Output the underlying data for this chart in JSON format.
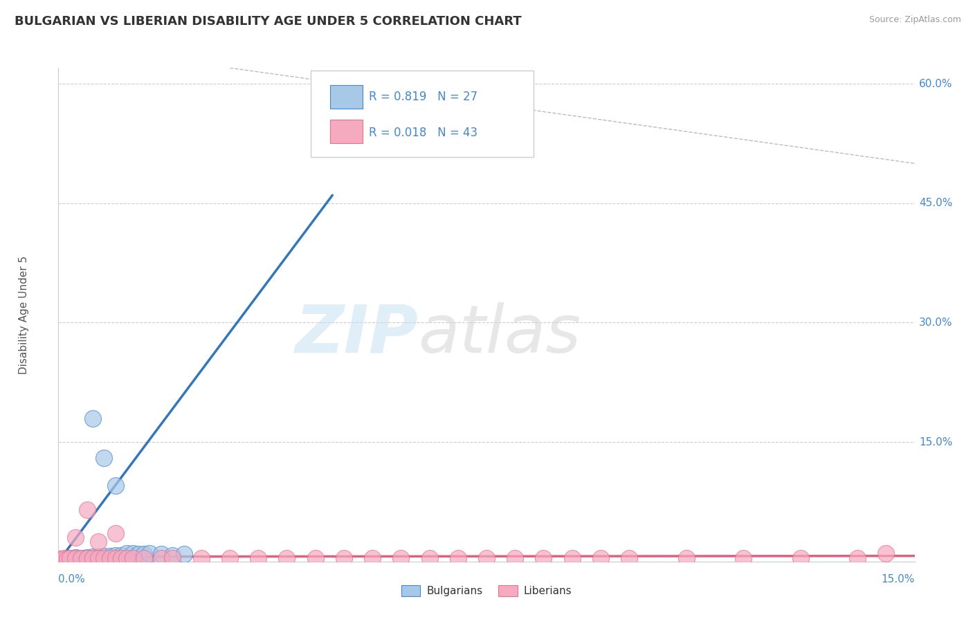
{
  "title": "BULGARIAN VS LIBERIAN DISABILITY AGE UNDER 5 CORRELATION CHART",
  "source": "Source: ZipAtlas.com",
  "ylabel": "Disability Age Under 5",
  "xlim": [
    -0.002,
    0.152
  ],
  "ylim": [
    -0.01,
    0.65
  ],
  "plot_xlim": [
    0.0,
    0.15
  ],
  "plot_ylim": [
    0.0,
    0.62
  ],
  "yticks": [
    0.0,
    0.15,
    0.3,
    0.45,
    0.6
  ],
  "ytick_labels": [
    "",
    "15.0%",
    "30.0%",
    "45.0%",
    "60.0%"
  ],
  "xtick_left": "0.0%",
  "xtick_right": "15.0%",
  "bg_color": "#ffffff",
  "bulgarian_color": "#a8c8e8",
  "liberian_color": "#f5aac0",
  "bulgarian_edge": "#4488cc",
  "liberian_edge": "#e87090",
  "trendline_bulgarian_color": "#3377bb",
  "trendline_liberian_color": "#e06080",
  "grid_color": "#cccccc",
  "title_color": "#333333",
  "axis_label_color": "#4488cc",
  "legend_r_bulgarian": "R = 0.819",
  "legend_n_bulgarian": "N = 27",
  "legend_r_liberian": "R = 0.018",
  "legend_n_liberian": "N = 43",
  "bulgarian_scatter_x": [
    0.0005,
    0.001,
    0.0015,
    0.002,
    0.0025,
    0.003,
    0.0035,
    0.004,
    0.0045,
    0.005,
    0.006,
    0.007,
    0.008,
    0.009,
    0.01,
    0.011,
    0.012,
    0.013,
    0.014,
    0.015,
    0.016,
    0.018,
    0.02,
    0.022,
    0.008,
    0.006,
    0.01
  ],
  "bulgarian_scatter_y": [
    0.003,
    0.003,
    0.004,
    0.004,
    0.003,
    0.005,
    0.004,
    0.003,
    0.004,
    0.005,
    0.006,
    0.006,
    0.007,
    0.007,
    0.008,
    0.008,
    0.01,
    0.01,
    0.009,
    0.009,
    0.01,
    0.009,
    0.008,
    0.009,
    0.13,
    0.18,
    0.095
  ],
  "liberian_scatter_x": [
    0.0005,
    0.001,
    0.0015,
    0.002,
    0.003,
    0.004,
    0.005,
    0.006,
    0.007,
    0.008,
    0.009,
    0.01,
    0.011,
    0.012,
    0.013,
    0.015,
    0.018,
    0.02,
    0.025,
    0.03,
    0.035,
    0.04,
    0.045,
    0.05,
    0.055,
    0.06,
    0.065,
    0.07,
    0.075,
    0.08,
    0.085,
    0.09,
    0.095,
    0.1,
    0.11,
    0.12,
    0.13,
    0.003,
    0.005,
    0.007,
    0.01,
    0.14,
    0.145
  ],
  "liberian_scatter_y": [
    0.003,
    0.004,
    0.003,
    0.004,
    0.004,
    0.004,
    0.004,
    0.004,
    0.004,
    0.004,
    0.004,
    0.004,
    0.004,
    0.004,
    0.004,
    0.004,
    0.004,
    0.004,
    0.004,
    0.004,
    0.004,
    0.004,
    0.004,
    0.004,
    0.004,
    0.004,
    0.004,
    0.004,
    0.004,
    0.004,
    0.004,
    0.004,
    0.004,
    0.004,
    0.004,
    0.004,
    0.004,
    0.03,
    0.065,
    0.025,
    0.035,
    0.004,
    0.01
  ],
  "bulgarian_trendline": [
    [
      0.0,
      0.0
    ],
    [
      0.048,
      0.46
    ]
  ],
  "liberian_trendline": [
    [
      0.0,
      0.006
    ],
    [
      0.15,
      0.007
    ]
  ],
  "diag_line": [
    [
      0.03,
      0.62
    ],
    [
      0.62,
      0.03
    ]
  ]
}
